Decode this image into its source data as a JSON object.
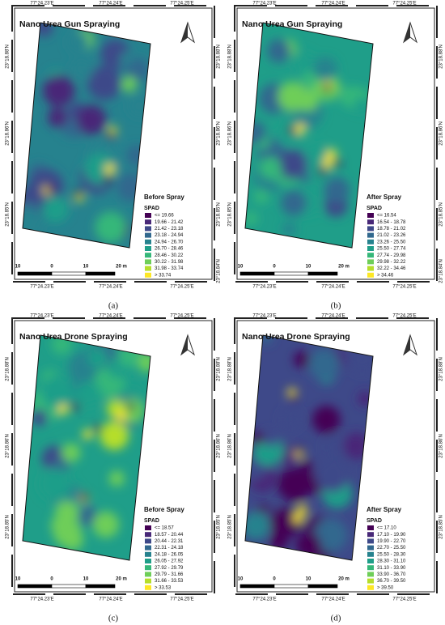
{
  "panels": [
    {
      "title": "Nano Urea Gun Spraying",
      "legend_title": "Before Spray",
      "legend_unit": "SPAD",
      "legend": [
        "<= 19.66",
        "19.66 - 21.42",
        "21.42 - 23.18",
        "23.18 - 24.94",
        "24.94 - 26.70",
        "26.70 - 28.46",
        "28.46 - 30.22",
        "30.22 - 31.98",
        "31.98 - 33.74",
        "> 33.74"
      ],
      "top_coords": [
        "77°24.23'E",
        "77°24.24'E",
        "77°24.25'E"
      ],
      "bottom_coords": [
        "77°24.23'E",
        "77°24.24'E",
        "77°24.25'E"
      ],
      "left_coords": [
        "23°18.88'N",
        "23°18.86'N",
        "23°18.85'N"
      ],
      "right_coords": [
        "23°18.88'N",
        "23°18.86'N",
        "23°18.85'N",
        "23°18.84'N"
      ],
      "scale": [
        "10",
        "0",
        "10",
        "20 m"
      ],
      "caption": "(a)"
    },
    {
      "title": "Nano Urea Gun Spraying",
      "legend_title": "After Spray",
      "legend_unit": "SPAD",
      "legend": [
        "<= 16.54",
        "16.54 - 18.78",
        "18.78 - 21.02",
        "21.02 - 23.26",
        "23.26 - 25.50",
        "25.50 - 27.74",
        "27.74 - 29.98",
        "29.98 - 32.22",
        "32.22 - 34.46",
        "> 34.46"
      ],
      "top_coords": [
        "77°24.23'E",
        "77°24.24'E",
        "77°24.25'E"
      ],
      "bottom_coords": [
        "77°24.23'E",
        "77°24.24'E",
        "77°24.25'E"
      ],
      "left_coords": [
        "23°18.88'N",
        "23°18.86'N",
        "23°18.85'N"
      ],
      "right_coords": [
        "23°18.88'N",
        "23°18.86'N",
        "23°18.85'N",
        "23°18.84'N"
      ],
      "scale": [
        "10",
        "0",
        "10",
        "20 m"
      ],
      "caption": "(b)"
    },
    {
      "title": "Nano Urea Drone Spraying",
      "legend_title": "Before Spray",
      "legend_unit": "SPAD",
      "legend": [
        "<= 18.57",
        "18.57 - 20.44",
        "20.44 - 22.31",
        "22.31 - 24.18",
        "24.18 - 26.05",
        "26.05 - 27.92",
        "27.92 - 29.79",
        "29.79 - 31.66",
        "31.66 - 33.53",
        "> 33.53"
      ],
      "top_coords": [
        "77°24.23'E",
        "77°24.24'E",
        "77°24.25'E"
      ],
      "bottom_coords": [
        "77°24.23'E",
        "77°24.24'E",
        "77°24.25'E"
      ],
      "left_coords": [
        "23°18.88'N",
        "23°18.86'N",
        "23°18.85'N"
      ],
      "right_coords": [
        "23°18.88'N",
        "23°18.86'N",
        "23°18.85'N"
      ],
      "scale": [
        "10",
        "0",
        "10",
        "20 m"
      ],
      "caption": "(c)"
    },
    {
      "title": "Nano Urea Drone Spraying",
      "legend_title": "After Spray",
      "legend_unit": "SPAD",
      "legend": [
        "<= 17.10",
        "17.10 - 19.90",
        "19.90 - 22.70",
        "22.70 - 25.50",
        "25.50 - 28.30",
        "28.30 - 31.10",
        "31.10 - 33.90",
        "33.90 - 36.70",
        "36.70 - 39.50",
        "> 39.50"
      ],
      "top_coords": [
        "77°24.23'E",
        "77°24.24'E",
        "77°24.25'E"
      ],
      "bottom_coords": [
        "77°24.23'E",
        "77°24.24'E",
        "77°24.25'E"
      ],
      "left_coords": [
        "23°18.88'N",
        "23°18.86'N",
        "23°18.85'N"
      ],
      "right_coords": [
        "23°18.88'N",
        "23°18.86'N",
        "23°18.85'N"
      ],
      "scale": [
        "10",
        "0",
        "10",
        "20 m"
      ],
      "caption": "(d)"
    }
  ],
  "colors": [
    "#440154",
    "#482878",
    "#3e4989",
    "#31688e",
    "#26828e",
    "#1f9e89",
    "#35b779",
    "#6ece58",
    "#b5de2b",
    "#fde725"
  ]
}
